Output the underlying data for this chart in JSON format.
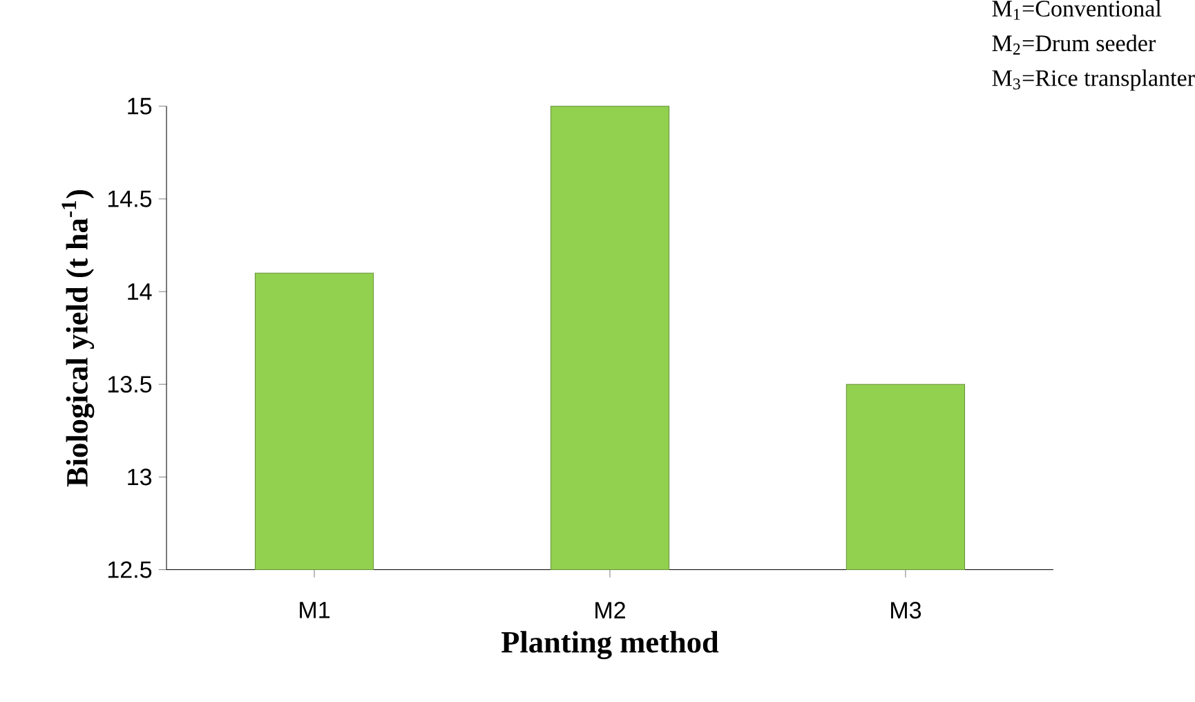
{
  "chart_data": {
    "type": "bar",
    "xlabel": "Planting method",
    "ylabel": "Biological yield (t ha$^{-1}$)",
    "categories": [
      "M1",
      "M2",
      "M3"
    ],
    "values": [
      14.1,
      15.0,
      13.5
    ],
    "color": "#92d050",
    "ylim": [
      12.5,
      15
    ],
    "yticks": [
      12.5,
      13,
      13.5,
      14,
      14.5,
      15
    ],
    "annotations": [
      "M$_{1}$=Conventional",
      "M$_{2}$=Drum seeder",
      "M$_{3}$=Rice transplanter"
    ]
  }
}
